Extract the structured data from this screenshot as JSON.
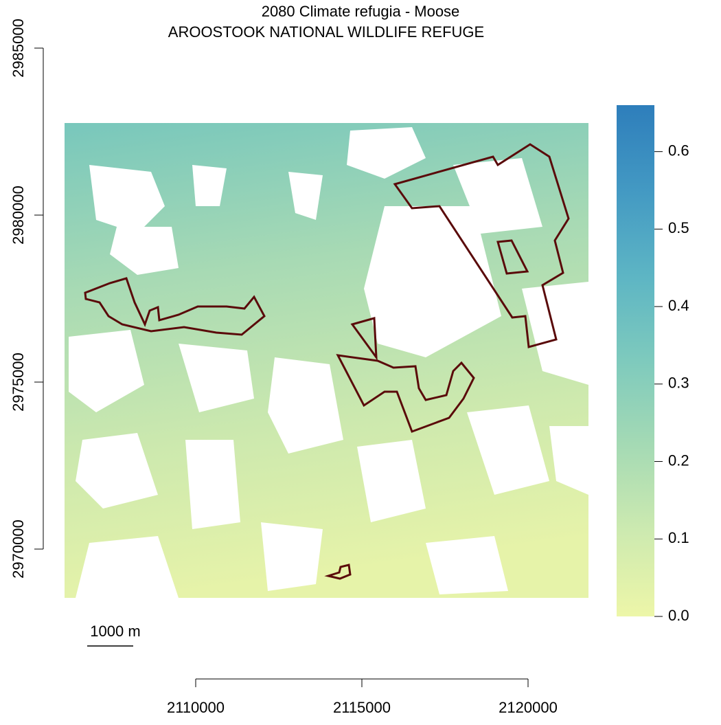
{
  "chart_data": {
    "type": "raster-map",
    "title": "2080 Climate refugia - Moose",
    "subtitle": "AROOSTOOK NATIONAL WILDLIFE REFUGE",
    "xlim": [
      2106000,
      2122000
    ],
    "ylim": [
      2968500,
      2985500
    ],
    "xticks": [
      2110000,
      2115000,
      2120000
    ],
    "yticks": [
      2970000,
      2975000,
      2980000,
      2985000
    ],
    "scale_bar": "1000 m",
    "colorbar": {
      "zlim": [
        0,
        0.66
      ],
      "ticks": [
        {
          "value": 0,
          "label": "0.0"
        },
        0.1,
        0.2,
        0.3,
        0.4,
        0.5,
        0.6
      ],
      "colors": [
        "#edf6a8",
        "#cdeab0",
        "#a5dab4",
        "#7ecabd",
        "#5db5c4",
        "#4399c3",
        "#2e7ebb"
      ]
    },
    "boundary_color": "#5a0a0a"
  }
}
